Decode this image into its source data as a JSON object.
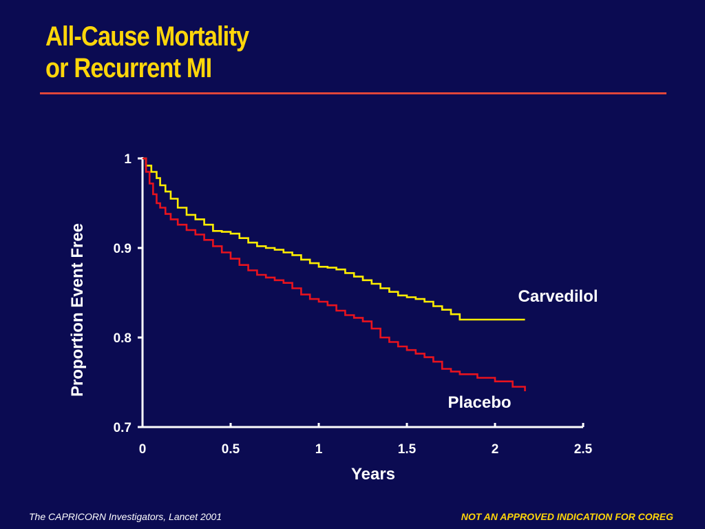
{
  "slide": {
    "title_line1": "All-Cause Mortality",
    "title_line2": "or Recurrent MI",
    "citation": "The CAPRICORN Investigators, Lancet 2001",
    "disclaimer": "NOT AN APPROVED INDICATION FOR COREG"
  },
  "colors": {
    "background": "#0b0b52",
    "title": "#ffd60a",
    "rule": "#e0463a",
    "carvedilol": "#ffee00",
    "placebo": "#e8131e",
    "axis": "#ffffff"
  },
  "chart_data": {
    "type": "line",
    "title": "All-Cause Mortality or Recurrent MI",
    "xlabel": "Years",
    "ylabel": "Proportion Event Free",
    "xlim": [
      0,
      2.5
    ],
    "ylim": [
      0.7,
      1.0
    ],
    "x_ticks": [
      0,
      0.5,
      1,
      1.5,
      2,
      2.5
    ],
    "x_tick_labels": [
      "0",
      "0.5",
      "1",
      "1.5",
      "2",
      "2.5"
    ],
    "y_ticks": [
      0.7,
      0.8,
      0.9,
      1.0
    ],
    "y_tick_labels": [
      "0.7",
      "0.8",
      "0.9",
      "1"
    ],
    "grid": false,
    "series": [
      {
        "name": "Carvedilol",
        "step": true,
        "x": [
          0,
          0.02,
          0.05,
          0.08,
          0.1,
          0.13,
          0.16,
          0.2,
          0.25,
          0.3,
          0.35,
          0.4,
          0.45,
          0.5,
          0.55,
          0.6,
          0.65,
          0.7,
          0.75,
          0.8,
          0.85,
          0.9,
          0.95,
          1.0,
          1.05,
          1.1,
          1.15,
          1.2,
          1.25,
          1.3,
          1.35,
          1.4,
          1.45,
          1.5,
          1.55,
          1.6,
          1.65,
          1.7,
          1.75,
          1.8,
          1.9,
          2.0,
          2.1,
          2.17
        ],
        "values": [
          1.0,
          0.992,
          0.985,
          0.978,
          0.97,
          0.963,
          0.955,
          0.945,
          0.937,
          0.932,
          0.926,
          0.919,
          0.918,
          0.916,
          0.911,
          0.906,
          0.902,
          0.9,
          0.898,
          0.895,
          0.892,
          0.887,
          0.883,
          0.879,
          0.878,
          0.876,
          0.872,
          0.868,
          0.864,
          0.86,
          0.855,
          0.851,
          0.847,
          0.845,
          0.843,
          0.84,
          0.835,
          0.831,
          0.826,
          0.82,
          0.82,
          0.82,
          0.82,
          0.82
        ]
      },
      {
        "name": "Placebo",
        "step": true,
        "x": [
          0,
          0.02,
          0.04,
          0.06,
          0.08,
          0.1,
          0.13,
          0.16,
          0.2,
          0.25,
          0.3,
          0.35,
          0.4,
          0.45,
          0.5,
          0.55,
          0.6,
          0.65,
          0.7,
          0.75,
          0.8,
          0.85,
          0.9,
          0.95,
          1.0,
          1.05,
          1.1,
          1.15,
          1.2,
          1.25,
          1.3,
          1.35,
          1.4,
          1.45,
          1.5,
          1.55,
          1.6,
          1.65,
          1.7,
          1.75,
          1.8,
          1.9,
          2.0,
          2.1,
          2.17
        ],
        "values": [
          1.0,
          0.985,
          0.972,
          0.96,
          0.95,
          0.945,
          0.938,
          0.932,
          0.926,
          0.92,
          0.915,
          0.909,
          0.902,
          0.895,
          0.888,
          0.881,
          0.875,
          0.87,
          0.867,
          0.864,
          0.861,
          0.855,
          0.848,
          0.843,
          0.84,
          0.836,
          0.83,
          0.825,
          0.822,
          0.818,
          0.81,
          0.8,
          0.795,
          0.79,
          0.786,
          0.782,
          0.778,
          0.773,
          0.765,
          0.762,
          0.759,
          0.755,
          0.751,
          0.745,
          0.74
        ]
      }
    ],
    "annotations": [
      {
        "text": "Carvedilol",
        "series": "Carvedilol"
      },
      {
        "text": "Placebo",
        "series": "Placebo"
      }
    ]
  }
}
